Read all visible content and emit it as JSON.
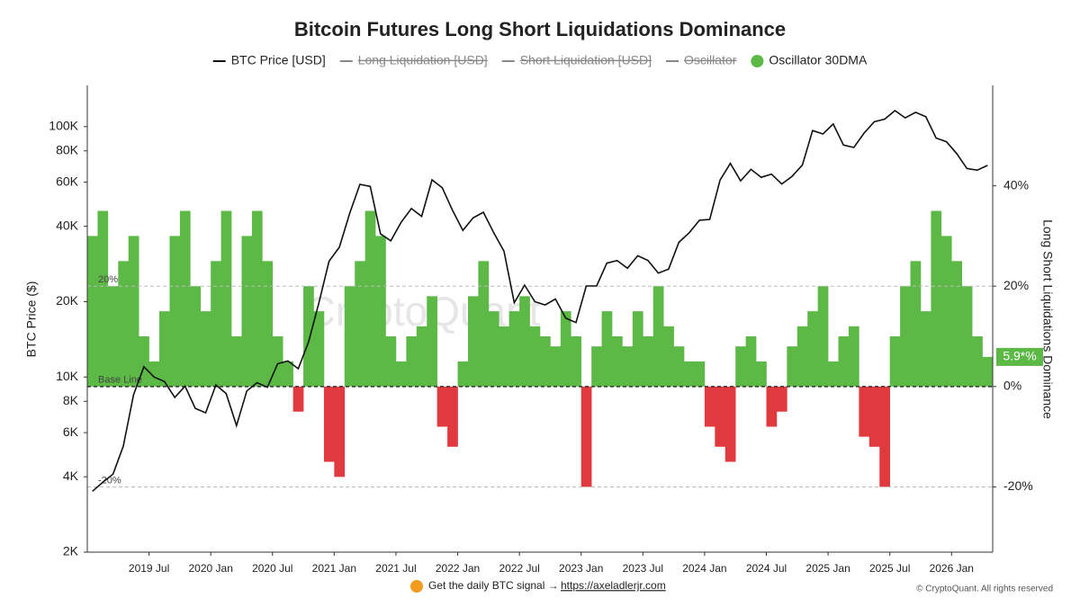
{
  "chart_data": {
    "type": "line",
    "title": "Bitcoin Futures Long Short Liquidations Dominance",
    "ylabel": "BTC Price ($)",
    "y2label": "Long Short Liquidations Dominance",
    "watermark": "CryptoQuant",
    "footer": {
      "text": "Get the daily BTC signal →",
      "link": "https://axeladlerjr.com",
      "copyright": "© CryptoQuant. All rights reserved"
    },
    "legend": [
      {
        "name": "BTC Price [USD]",
        "hidden": false,
        "marker": "line",
        "color": "#111111"
      },
      {
        "name": "Long Liquidation [USD]",
        "hidden": true,
        "marker": "line",
        "color": "#888888"
      },
      {
        "name": "Short Liquidation [USD]",
        "hidden": true,
        "marker": "line",
        "color": "#888888"
      },
      {
        "name": "Oscillator",
        "hidden": true,
        "marker": "line",
        "color": "#888888"
      },
      {
        "name": "Oscillator 30DMA",
        "hidden": false,
        "marker": "dot",
        "color": "#5cb946"
      }
    ],
    "categories": [
      null,
      null,
      null,
      null,
      null,
      null,
      "2019 Jul",
      null,
      null,
      null,
      null,
      null,
      "2020 Jan",
      null,
      null,
      null,
      null,
      null,
      "2020 Jul",
      null,
      null,
      null,
      null,
      null,
      "2021 Jan",
      null,
      null,
      null,
      null,
      null,
      "2021 Jul",
      null,
      null,
      null,
      null,
      null,
      "2022 Jan",
      null,
      null,
      null,
      null,
      null,
      "2022 Jul",
      null,
      null,
      null,
      null,
      null,
      "2023 Jan",
      null,
      null,
      null,
      null,
      null,
      "2023 Jul",
      null,
      null,
      null,
      null,
      null,
      "2024 Jan",
      null,
      null,
      null,
      null,
      null,
      "2024 Jul",
      null,
      null,
      null,
      null,
      null,
      "2025 Jan",
      null,
      null,
      null,
      null,
      null,
      "2025 Jul",
      null,
      null,
      null,
      null,
      null,
      "2026 Jan",
      null,
      null,
      null
    ],
    "series": [
      {
        "name": "BTC Price [USD]",
        "color": "#111111",
        "axis": "y",
        "values": [
          3500,
          3800,
          4100,
          5300,
          8500,
          11000,
          10000,
          9600,
          8300,
          9200,
          7500,
          7200,
          9300,
          8600,
          6400,
          8800,
          9500,
          9100,
          11300,
          11600,
          10800,
          13800,
          19700,
          29000,
          33000,
          45000,
          58800,
          57700,
          37300,
          35000,
          41500,
          47100,
          43800,
          61300,
          57000,
          46300,
          38500,
          43200,
          45500,
          37700,
          31800,
          19800,
          23300,
          20000,
          19400,
          20500,
          17200,
          16500,
          23100,
          23100,
          28500,
          29200,
          27200,
          30500,
          29200,
          26000,
          27000,
          34500,
          37700,
          42300,
          42600,
          61200,
          71300,
          60700,
          67500,
          62700,
          64600,
          59000,
          63300,
          70200,
          96400,
          93400,
          102400,
          84400,
          82500,
          94200,
          104600,
          107100,
          115800,
          108300,
          114000,
          109500,
          90000,
          87000,
          78000,
          68000,
          67000,
          70000
        ]
      },
      {
        "name": "Oscillator 30DMA",
        "color": "#5cb946",
        "negative_color": "#e0393e",
        "axis": "y2",
        "values": [
          30,
          35,
          20,
          25,
          30,
          10,
          5,
          15,
          30,
          35,
          20,
          15,
          25,
          35,
          10,
          30,
          35,
          25,
          10,
          5,
          -5,
          20,
          15,
          -15,
          -18,
          20,
          25,
          35,
          30,
          10,
          5,
          10,
          12,
          18,
          -8,
          -12,
          5,
          18,
          25,
          15,
          12,
          15,
          18,
          12,
          10,
          8,
          15,
          10,
          -20,
          8,
          15,
          10,
          8,
          15,
          10,
          20,
          12,
          8,
          5,
          5,
          -8,
          -12,
          -15,
          8,
          10,
          5,
          -8,
          -5,
          8,
          12,
          15,
          20,
          5,
          10,
          12,
          -10,
          -12,
          -20,
          10,
          20,
          25,
          15,
          35,
          30,
          25,
          20,
          10,
          5.9
        ],
        "last_label": "5.9*%"
      }
    ],
    "log_scale": true,
    "ylim": [
      2000,
      146000
    ],
    "yticks": [
      {
        "value": 2000,
        "label": "2K"
      },
      {
        "value": 4000,
        "label": "4K"
      },
      {
        "value": 6000,
        "label": "6K"
      },
      {
        "value": 8000,
        "label": "8K"
      },
      {
        "value": 10000,
        "label": "10K"
      },
      {
        "value": 20000,
        "label": "20K"
      },
      {
        "value": 40000,
        "label": "40K"
      },
      {
        "value": 60000,
        "label": "60K"
      },
      {
        "value": 80000,
        "label": "80K"
      },
      {
        "value": 100000,
        "label": "100K"
      }
    ],
    "y2lim": [
      -33,
      60
    ],
    "y2ticks": [
      {
        "value": -20,
        "label": "-20%"
      },
      {
        "value": 0,
        "label": "0%"
      },
      {
        "value": 20,
        "label": "20%"
      },
      {
        "value": 40,
        "label": "40%"
      }
    ],
    "reference_lines": [
      {
        "value": 20,
        "label": "20%"
      },
      {
        "value": 0,
        "label": "Base Line"
      },
      {
        "value": -20,
        "label": "-20%"
      }
    ]
  }
}
